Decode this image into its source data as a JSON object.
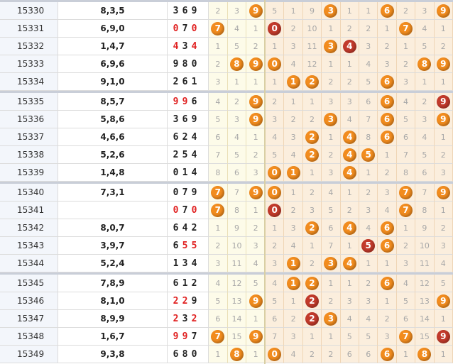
{
  "rows": [
    {
      "issue": "15330",
      "sum": "8,3,5",
      "draw": [
        "3",
        "6",
        "9"
      ],
      "red": [
        false,
        false,
        false
      ],
      "a": [
        {
          "v": "2"
        },
        {
          "v": "3"
        },
        {
          "v": "9",
          "ball": "orange"
        }
      ],
      "b": [
        {
          "v": "5"
        },
        {
          "v": "1"
        },
        {
          "v": "9"
        },
        {
          "v": "3",
          "ball": "orange"
        },
        {
          "v": "1"
        },
        {
          "v": "1"
        },
        {
          "v": "6",
          "ball": "orange"
        },
        {
          "v": "2"
        },
        {
          "v": "3"
        },
        {
          "v": "9",
          "ball": "orange"
        }
      ]
    },
    {
      "issue": "15331",
      "sum": "6,9,0",
      "draw": [
        "0",
        "7",
        "0"
      ],
      "red": [
        true,
        false,
        true
      ],
      "a": [
        {
          "v": "7",
          "ball": "orange"
        },
        {
          "v": "4"
        },
        {
          "v": "1"
        }
      ],
      "b": [
        {
          "v": "0",
          "ball": "red"
        },
        {
          "v": "2"
        },
        {
          "v": "10"
        },
        {
          "v": "1"
        },
        {
          "v": "2"
        },
        {
          "v": "2"
        },
        {
          "v": "1"
        },
        {
          "v": "7",
          "ball": "orange"
        },
        {
          "v": "4"
        },
        {
          "v": "1"
        }
      ]
    },
    {
      "issue": "15332",
      "sum": "1,4,7",
      "draw": [
        "4",
        "3",
        "4"
      ],
      "red": [
        true,
        false,
        true
      ],
      "a": [
        {
          "v": "1"
        },
        {
          "v": "5"
        },
        {
          "v": "2"
        }
      ],
      "b": [
        {
          "v": "1"
        },
        {
          "v": "3"
        },
        {
          "v": "11"
        },
        {
          "v": "3",
          "ball": "orange"
        },
        {
          "v": "4",
          "ball": "red"
        },
        {
          "v": "3"
        },
        {
          "v": "2"
        },
        {
          "v": "1"
        },
        {
          "v": "5"
        },
        {
          "v": "2"
        }
      ]
    },
    {
      "issue": "15333",
      "sum": "6,9,6",
      "draw": [
        "9",
        "8",
        "0"
      ],
      "red": [
        false,
        false,
        false
      ],
      "a": [
        {
          "v": "2"
        },
        {
          "v": "8",
          "ball": "orange"
        },
        {
          "v": "9",
          "ball": "orange"
        }
      ],
      "b": [
        {
          "v": "0",
          "ball": "orange"
        },
        {
          "v": "4"
        },
        {
          "v": "12"
        },
        {
          "v": "1"
        },
        {
          "v": "1"
        },
        {
          "v": "4"
        },
        {
          "v": "3"
        },
        {
          "v": "2"
        },
        {
          "v": "8",
          "ball": "orange"
        },
        {
          "v": "9",
          "ball": "orange"
        }
      ]
    },
    {
      "issue": "15334",
      "sum": "9,1,0",
      "draw": [
        "2",
        "6",
        "1"
      ],
      "red": [
        false,
        false,
        false
      ],
      "a": [
        {
          "v": "3"
        },
        {
          "v": "1"
        },
        {
          "v": "1"
        }
      ],
      "b": [
        {
          "v": "1"
        },
        {
          "v": "1",
          "ball": "orange"
        },
        {
          "v": "2",
          "ball": "orange"
        },
        {
          "v": "2"
        },
        {
          "v": "2"
        },
        {
          "v": "5"
        },
        {
          "v": "6",
          "ball": "orange"
        },
        {
          "v": "3"
        },
        {
          "v": "1"
        },
        {
          "v": "1"
        }
      ]
    },
    {
      "issue": "15335",
      "sum": "8,5,7",
      "draw": [
        "9",
        "9",
        "6"
      ],
      "red": [
        true,
        true,
        false
      ],
      "a": [
        {
          "v": "4"
        },
        {
          "v": "2"
        },
        {
          "v": "9",
          "ball": "orange"
        }
      ],
      "b": [
        {
          "v": "2"
        },
        {
          "v": "1"
        },
        {
          "v": "1"
        },
        {
          "v": "3"
        },
        {
          "v": "3"
        },
        {
          "v": "6"
        },
        {
          "v": "6",
          "ball": "orange"
        },
        {
          "v": "4"
        },
        {
          "v": "2"
        },
        {
          "v": "9",
          "ball": "red"
        }
      ]
    },
    {
      "issue": "15336",
      "sum": "5,8,6",
      "draw": [
        "3",
        "6",
        "9"
      ],
      "red": [
        false,
        false,
        false
      ],
      "a": [
        {
          "v": "5"
        },
        {
          "v": "3"
        },
        {
          "v": "9",
          "ball": "orange"
        }
      ],
      "b": [
        {
          "v": "3"
        },
        {
          "v": "2"
        },
        {
          "v": "2"
        },
        {
          "v": "3",
          "ball": "orange"
        },
        {
          "v": "4"
        },
        {
          "v": "7"
        },
        {
          "v": "6",
          "ball": "orange"
        },
        {
          "v": "5"
        },
        {
          "v": "3"
        },
        {
          "v": "9",
          "ball": "orange"
        }
      ]
    },
    {
      "issue": "15337",
      "sum": "4,6,6",
      "draw": [
        "6",
        "2",
        "4"
      ],
      "red": [
        false,
        false,
        false
      ],
      "a": [
        {
          "v": "6"
        },
        {
          "v": "4"
        },
        {
          "v": "1"
        }
      ],
      "b": [
        {
          "v": "4"
        },
        {
          "v": "3"
        },
        {
          "v": "2",
          "ball": "orange"
        },
        {
          "v": "1"
        },
        {
          "v": "4",
          "ball": "orange"
        },
        {
          "v": "8"
        },
        {
          "v": "6",
          "ball": "orange"
        },
        {
          "v": "6"
        },
        {
          "v": "4"
        },
        {
          "v": "1"
        }
      ]
    },
    {
      "issue": "15338",
      "sum": "5,2,6",
      "draw": [
        "2",
        "5",
        "4"
      ],
      "red": [
        false,
        false,
        false
      ],
      "a": [
        {
          "v": "7"
        },
        {
          "v": "5"
        },
        {
          "v": "2"
        }
      ],
      "b": [
        {
          "v": "5"
        },
        {
          "v": "4"
        },
        {
          "v": "2",
          "ball": "orange"
        },
        {
          "v": "2"
        },
        {
          "v": "4",
          "ball": "orange"
        },
        {
          "v": "5",
          "ball": "orange"
        },
        {
          "v": "1"
        },
        {
          "v": "7"
        },
        {
          "v": "5"
        },
        {
          "v": "2"
        }
      ]
    },
    {
      "issue": "15339",
      "sum": "1,4,8",
      "draw": [
        "0",
        "1",
        "4"
      ],
      "red": [
        false,
        false,
        false
      ],
      "a": [
        {
          "v": "8"
        },
        {
          "v": "6"
        },
        {
          "v": "3"
        }
      ],
      "b": [
        {
          "v": "0",
          "ball": "orange"
        },
        {
          "v": "1",
          "ball": "orange"
        },
        {
          "v": "1"
        },
        {
          "v": "3"
        },
        {
          "v": "4",
          "ball": "orange"
        },
        {
          "v": "1"
        },
        {
          "v": "2"
        },
        {
          "v": "8"
        },
        {
          "v": "6"
        },
        {
          "v": "3"
        }
      ]
    },
    {
      "issue": "15340",
      "sum": "7,3,1",
      "draw": [
        "0",
        "7",
        "9"
      ],
      "red": [
        false,
        false,
        false
      ],
      "a": [
        {
          "v": "7",
          "ball": "orange"
        },
        {
          "v": "7"
        },
        {
          "v": "9",
          "ball": "orange"
        }
      ],
      "b": [
        {
          "v": "0",
          "ball": "orange"
        },
        {
          "v": "1"
        },
        {
          "v": "2"
        },
        {
          "v": "4"
        },
        {
          "v": "1"
        },
        {
          "v": "2"
        },
        {
          "v": "3"
        },
        {
          "v": "7",
          "ball": "orange"
        },
        {
          "v": "7"
        },
        {
          "v": "9",
          "ball": "orange"
        }
      ]
    },
    {
      "issue": "15341",
      "sum": "",
      "draw": [
        "0",
        "7",
        "0"
      ],
      "red": [
        true,
        false,
        true
      ],
      "a": [
        {
          "v": "7",
          "ball": "orange"
        },
        {
          "v": "8"
        },
        {
          "v": "1"
        }
      ],
      "b": [
        {
          "v": "0",
          "ball": "red"
        },
        {
          "v": "2"
        },
        {
          "v": "3"
        },
        {
          "v": "5"
        },
        {
          "v": "2"
        },
        {
          "v": "3"
        },
        {
          "v": "4"
        },
        {
          "v": "7",
          "ball": "orange"
        },
        {
          "v": "8"
        },
        {
          "v": "1"
        }
      ]
    },
    {
      "issue": "15342",
      "sum": "8,0,7",
      "draw": [
        "6",
        "4",
        "2"
      ],
      "red": [
        false,
        false,
        false
      ],
      "a": [
        {
          "v": "1"
        },
        {
          "v": "9"
        },
        {
          "v": "2"
        }
      ],
      "b": [
        {
          "v": "1"
        },
        {
          "v": "3"
        },
        {
          "v": "2",
          "ball": "orange"
        },
        {
          "v": "6"
        },
        {
          "v": "4",
          "ball": "orange"
        },
        {
          "v": "4"
        },
        {
          "v": "6",
          "ball": "orange"
        },
        {
          "v": "1"
        },
        {
          "v": "9"
        },
        {
          "v": "2"
        }
      ]
    },
    {
      "issue": "15343",
      "sum": "3,9,7",
      "draw": [
        "6",
        "5",
        "5"
      ],
      "red": [
        false,
        true,
        true
      ],
      "a": [
        {
          "v": "2"
        },
        {
          "v": "10"
        },
        {
          "v": "3"
        }
      ],
      "b": [
        {
          "v": "2"
        },
        {
          "v": "4"
        },
        {
          "v": "1"
        },
        {
          "v": "7"
        },
        {
          "v": "1"
        },
        {
          "v": "5",
          "ball": "red"
        },
        {
          "v": "6",
          "ball": "orange"
        },
        {
          "v": "2"
        },
        {
          "v": "10"
        },
        {
          "v": "3"
        }
      ]
    },
    {
      "issue": "15344",
      "sum": "5,2,4",
      "draw": [
        "1",
        "3",
        "4"
      ],
      "red": [
        false,
        false,
        false
      ],
      "a": [
        {
          "v": "3"
        },
        {
          "v": "11"
        },
        {
          "v": "4"
        }
      ],
      "b": [
        {
          "v": "3"
        },
        {
          "v": "1",
          "ball": "orange"
        },
        {
          "v": "2"
        },
        {
          "v": "3",
          "ball": "orange"
        },
        {
          "v": "4",
          "ball": "orange"
        },
        {
          "v": "1"
        },
        {
          "v": "1"
        },
        {
          "v": "3"
        },
        {
          "v": "11"
        },
        {
          "v": "4"
        }
      ]
    },
    {
      "issue": "15345",
      "sum": "7,8,9",
      "draw": [
        "6",
        "1",
        "2"
      ],
      "red": [
        false,
        false,
        false
      ],
      "a": [
        {
          "v": "4"
        },
        {
          "v": "12"
        },
        {
          "v": "5"
        }
      ],
      "b": [
        {
          "v": "4"
        },
        {
          "v": "1",
          "ball": "orange"
        },
        {
          "v": "2",
          "ball": "orange"
        },
        {
          "v": "1"
        },
        {
          "v": "1"
        },
        {
          "v": "2"
        },
        {
          "v": "6",
          "ball": "orange"
        },
        {
          "v": "4"
        },
        {
          "v": "12"
        },
        {
          "v": "5"
        }
      ]
    },
    {
      "issue": "15346",
      "sum": "8,1,0",
      "draw": [
        "2",
        "2",
        "9"
      ],
      "red": [
        true,
        true,
        false
      ],
      "a": [
        {
          "v": "5"
        },
        {
          "v": "13"
        },
        {
          "v": "9",
          "ball": "orange"
        }
      ],
      "b": [
        {
          "v": "5"
        },
        {
          "v": "1"
        },
        {
          "v": "2",
          "ball": "red"
        },
        {
          "v": "2"
        },
        {
          "v": "3"
        },
        {
          "v": "3"
        },
        {
          "v": "1"
        },
        {
          "v": "5"
        },
        {
          "v": "13"
        },
        {
          "v": "9",
          "ball": "orange"
        }
      ]
    },
    {
      "issue": "15347",
      "sum": "8,9,9",
      "draw": [
        "2",
        "3",
        "2"
      ],
      "red": [
        true,
        false,
        true
      ],
      "a": [
        {
          "v": "6"
        },
        {
          "v": "14"
        },
        {
          "v": "1"
        }
      ],
      "b": [
        {
          "v": "6"
        },
        {
          "v": "2"
        },
        {
          "v": "2",
          "ball": "red"
        },
        {
          "v": "3",
          "ball": "orange"
        },
        {
          "v": "4"
        },
        {
          "v": "4"
        },
        {
          "v": "2"
        },
        {
          "v": "6"
        },
        {
          "v": "14"
        },
        {
          "v": "1"
        }
      ]
    },
    {
      "issue": "15348",
      "sum": "1,6,7",
      "draw": [
        "9",
        "9",
        "7"
      ],
      "red": [
        true,
        true,
        false
      ],
      "a": [
        {
          "v": "7",
          "ball": "orange"
        },
        {
          "v": "15"
        },
        {
          "v": "9",
          "ball": "orange"
        }
      ],
      "b": [
        {
          "v": "7"
        },
        {
          "v": "3"
        },
        {
          "v": "1"
        },
        {
          "v": "1"
        },
        {
          "v": "5"
        },
        {
          "v": "5"
        },
        {
          "v": "3"
        },
        {
          "v": "7",
          "ball": "orange"
        },
        {
          "v": "15"
        },
        {
          "v": "9",
          "ball": "red"
        }
      ]
    },
    {
      "issue": "15349",
      "sum": "9,3,8",
      "draw": [
        "6",
        "8",
        "0"
      ],
      "red": [
        false,
        false,
        false
      ],
      "a": [
        {
          "v": "1"
        },
        {
          "v": "8",
          "ball": "orange"
        },
        {
          "v": "1"
        }
      ],
      "b": [
        {
          "v": "0",
          "ball": "orange"
        },
        {
          "v": "4"
        },
        {
          "v": "2"
        },
        {
          "v": "2"
        },
        {
          "v": "6"
        },
        {
          "v": "6"
        },
        {
          "v": "6",
          "ball": "orange"
        },
        {
          "v": "1"
        },
        {
          "v": "8",
          "ball": "orange"
        },
        {
          "v": "1"
        }
      ]
    }
  ],
  "colors": {
    "ball_orange": "#f28c1e",
    "ball_red": "#c23a2b",
    "digit_red": "#e02020"
  }
}
